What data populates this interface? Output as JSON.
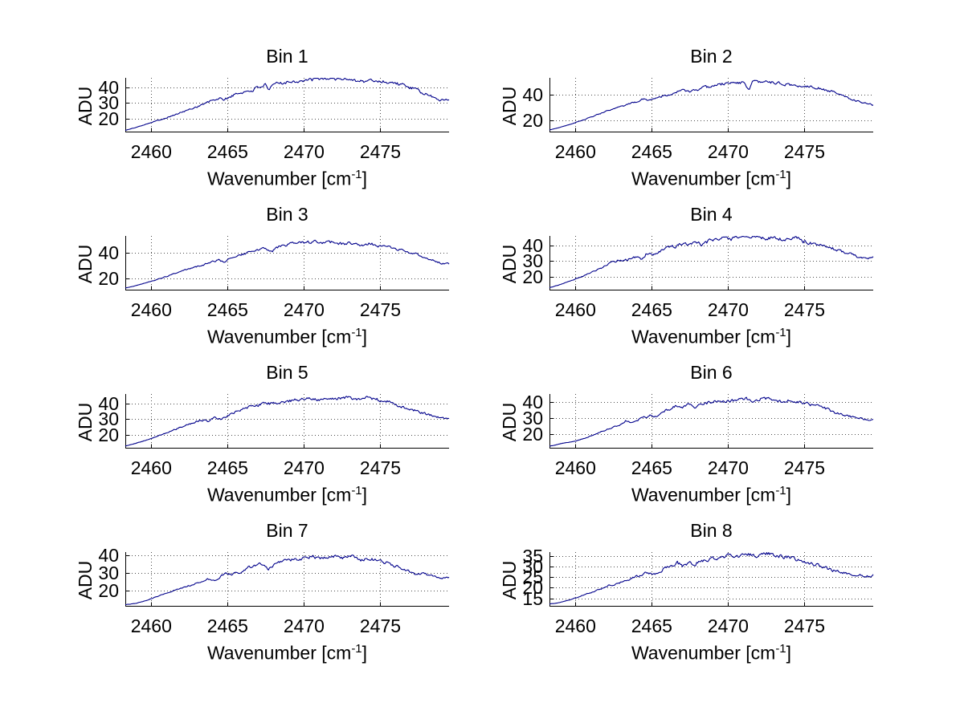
{
  "figure": {
    "background_color": "#ffffff",
    "line_color": "#00008b",
    "grid_color": "#4c4c4c",
    "axis_color": "#000000",
    "text_color": "#000000"
  },
  "shared": {
    "ylabel": "ADU",
    "xlabel_prefix": "Wavenumber [cm",
    "xlabel_sup": "-1",
    "xlabel_suffix": "]",
    "x_ticks": [
      2460,
      2465,
      2470,
      2475
    ],
    "xlim": [
      2458.3,
      2479.5
    ],
    "grid": true,
    "legend": "none"
  },
  "chart_data": [
    {
      "type": "line",
      "title": "Bin 1",
      "ylabel": "ADU",
      "xlabel": "Wavenumber [cm⁻¹]",
      "xlim": [
        2458.3,
        2479.5
      ],
      "ylim": [
        11,
        46
      ],
      "x_ticks": [
        2460,
        2465,
        2470,
        2475
      ],
      "y_ticks": [
        20,
        30,
        40
      ],
      "noise_amplitude": 1.0,
      "seed": 101,
      "anchors_x": [
        2458.3,
        2459.0,
        2459.8,
        2460.6,
        2461.4,
        2462.2,
        2463.0,
        2463.8,
        2464.4,
        2464.8,
        2465.4,
        2466.0,
        2466.6,
        2467.2,
        2467.45,
        2467.7,
        2468.0,
        2468.4,
        2469.0,
        2469.6,
        2470.3,
        2470.9,
        2471.5,
        2472.1,
        2472.7,
        2473.3,
        2473.9,
        2474.5,
        2474.9,
        2475.5,
        2476.1,
        2476.7,
        2477.3,
        2477.9,
        2478.5,
        2479.0,
        2479.5
      ],
      "anchors_y": [
        12.3,
        14.2,
        16.8,
        19.2,
        21.8,
        24.6,
        27.6,
        30.6,
        32.8,
        32.0,
        35.0,
        36.8,
        38.0,
        40.8,
        41.5,
        37.2,
        41.8,
        42.8,
        43.6,
        44.0,
        44.4,
        45.2,
        45.8,
        45.3,
        45.6,
        44.8,
        43.6,
        44.4,
        43.8,
        43.4,
        42.4,
        40.6,
        38.4,
        35.8,
        33.4,
        31.6,
        32.4
      ]
    },
    {
      "type": "line",
      "title": "Bin 2",
      "ylabel": "ADU",
      "xlabel": "Wavenumber [cm⁻¹]",
      "xlim": [
        2458.3,
        2479.5
      ],
      "ylim": [
        10.6,
        53
      ],
      "x_ticks": [
        2460,
        2465,
        2470,
        2475
      ],
      "y_ticks": [
        20,
        40
      ],
      "noise_amplitude": 1.0,
      "seed": 202,
      "anchors_x": [
        2458.3,
        2459.0,
        2459.8,
        2460.6,
        2461.4,
        2462.2,
        2463.0,
        2463.8,
        2464.5,
        2464.9,
        2465.3,
        2466.0,
        2466.6,
        2467.1,
        2467.6,
        2468.1,
        2468.7,
        2469.3,
        2469.9,
        2470.5,
        2471.1,
        2471.35,
        2471.6,
        2472.1,
        2472.6,
        2473.1,
        2473.7,
        2474.3,
        2474.9,
        2475.4,
        2476.0,
        2476.6,
        2477.2,
        2477.8,
        2478.4,
        2478.9,
        2479.3,
        2479.5
      ],
      "anchors_y": [
        12.5,
        14.6,
        17.4,
        20.6,
        24.2,
        27.6,
        30.6,
        33.6,
        36.8,
        35.8,
        37.6,
        39.8,
        41.8,
        43.4,
        42.2,
        44.2,
        46.0,
        47.6,
        48.6,
        49.6,
        48.8,
        43.5,
        49.8,
        49.2,
        50.2,
        48.8,
        48.2,
        47.0,
        46.2,
        46.8,
        44.8,
        43.0,
        40.6,
        37.8,
        35.2,
        33.6,
        33.2,
        31.8
      ]
    },
    {
      "type": "line",
      "title": "Bin 3",
      "ylabel": "ADU",
      "xlabel": "Wavenumber [cm⁻¹]",
      "xlim": [
        2458.3,
        2479.5
      ],
      "ylim": [
        11,
        53
      ],
      "x_ticks": [
        2460,
        2465,
        2470,
        2475
      ],
      "y_ticks": [
        20,
        40
      ],
      "noise_amplitude": 1.0,
      "seed": 303,
      "anchors_x": [
        2458.3,
        2459.0,
        2459.8,
        2460.6,
        2461.4,
        2462.2,
        2463.0,
        2463.8,
        2464.4,
        2464.8,
        2465.2,
        2465.8,
        2466.4,
        2467.0,
        2467.5,
        2467.9,
        2468.3,
        2468.9,
        2469.5,
        2470.1,
        2470.7,
        2471.3,
        2471.9,
        2472.5,
        2473.1,
        2473.7,
        2474.3,
        2474.9,
        2475.5,
        2476.1,
        2476.7,
        2477.3,
        2477.9,
        2478.5,
        2479.0,
        2479.5
      ],
      "anchors_y": [
        12.8,
        14.8,
        17.4,
        20.2,
        23.4,
        26.6,
        29.4,
        32.2,
        34.4,
        33.2,
        36.2,
        38.2,
        40.2,
        42.2,
        43.8,
        40.8,
        44.6,
        46.2,
        47.2,
        47.6,
        48.6,
        47.4,
        48.4,
        46.8,
        47.6,
        46.2,
        47.0,
        45.6,
        44.4,
        42.8,
        41.2,
        39.2,
        36.6,
        34.0,
        32.0,
        31.4
      ]
    },
    {
      "type": "line",
      "title": "Bin 4",
      "ylabel": "ADU",
      "xlabel": "Wavenumber [cm⁻¹]",
      "xlim": [
        2458.3,
        2479.5
      ],
      "ylim": [
        11,
        46
      ],
      "x_ticks": [
        2460,
        2465,
        2470,
        2475
      ],
      "y_ticks": [
        20,
        30,
        40
      ],
      "noise_amplitude": 1.0,
      "seed": 404,
      "anchors_x": [
        2458.3,
        2459.0,
        2459.8,
        2460.6,
        2461.4,
        2462.0,
        2462.5,
        2462.9,
        2463.4,
        2463.9,
        2464.3,
        2464.7,
        2465.1,
        2465.7,
        2466.3,
        2466.9,
        2467.5,
        2468.0,
        2468.3,
        2468.8,
        2469.4,
        2470.0,
        2470.6,
        2471.2,
        2471.8,
        2472.4,
        2473.0,
        2473.6,
        2474.1,
        2474.45,
        2474.8,
        2475.4,
        2476.0,
        2476.4,
        2477.0,
        2477.6,
        2478.2,
        2478.8,
        2479.2,
        2479.5
      ],
      "anchors_y": [
        12.8,
        14.8,
        17.6,
        20.6,
        24.0,
        27.0,
        29.6,
        30.4,
        30.8,
        32.4,
        31.2,
        35.2,
        34.4,
        36.8,
        39.0,
        40.4,
        41.2,
        41.6,
        39.8,
        43.2,
        44.4,
        43.8,
        44.6,
        45.4,
        45.0,
        44.4,
        44.8,
        43.6,
        44.2,
        45.2,
        42.6,
        41.4,
        40.2,
        39.6,
        37.6,
        35.6,
        33.6,
        31.6,
        31.2,
        32.6
      ]
    },
    {
      "type": "line",
      "title": "Bin 5",
      "ylabel": "ADU",
      "xlabel": "Wavenumber [cm⁻¹]",
      "xlim": [
        2458.3,
        2479.5
      ],
      "ylim": [
        11,
        46
      ],
      "x_ticks": [
        2460,
        2465,
        2470,
        2475
      ],
      "y_ticks": [
        20,
        30,
        40
      ],
      "noise_amplitude": 0.9,
      "seed": 505,
      "anchors_x": [
        2458.3,
        2459.0,
        2459.8,
        2460.6,
        2461.4,
        2462.2,
        2462.8,
        2463.3,
        2463.7,
        2464.2,
        2464.6,
        2465.1,
        2465.7,
        2466.3,
        2466.9,
        2467.5,
        2468.1,
        2468.7,
        2469.3,
        2469.9,
        2470.5,
        2471.1,
        2471.7,
        2472.3,
        2472.9,
        2473.5,
        2474.1,
        2474.7,
        2475.2,
        2475.7,
        2476.1,
        2476.6,
        2477.2,
        2477.8,
        2478.4,
        2478.9,
        2479.3,
        2479.5
      ],
      "anchors_y": [
        12.6,
        14.4,
        16.8,
        19.6,
        22.6,
        25.6,
        27.8,
        29.4,
        28.4,
        30.8,
        29.8,
        32.6,
        35.0,
        37.2,
        38.8,
        40.0,
        39.6,
        40.8,
        42.0,
        42.8,
        43.2,
        42.6,
        43.8,
        43.2,
        43.6,
        42.8,
        43.4,
        42.6,
        41.2,
        40.8,
        38.6,
        37.4,
        35.6,
        33.8,
        32.0,
        30.8,
        30.2,
        30.8
      ]
    },
    {
      "type": "line",
      "title": "Bin 6",
      "ylabel": "ADU",
      "xlabel": "Wavenumber [cm⁻¹]",
      "xlim": [
        2458.3,
        2479.5
      ],
      "ylim": [
        11,
        45
      ],
      "x_ticks": [
        2460,
        2465,
        2470,
        2475
      ],
      "y_ticks": [
        20,
        30,
        40
      ],
      "noise_amplitude": 0.9,
      "seed": 606,
      "anchors_x": [
        2458.3,
        2459.2,
        2459.9,
        2460.5,
        2461.2,
        2462.0,
        2462.8,
        2463.3,
        2463.7,
        2464.3,
        2464.9,
        2465.3,
        2465.8,
        2466.3,
        2466.65,
        2466.95,
        2467.4,
        2467.8,
        2468.1,
        2468.6,
        2469.2,
        2469.9,
        2470.6,
        2471.2,
        2471.7,
        2472.3,
        2472.9,
        2473.5,
        2474.1,
        2474.7,
        2475.2,
        2475.8,
        2476.4,
        2477.0,
        2477.6,
        2478.2,
        2478.8,
        2479.2,
        2479.5
      ],
      "anchors_y": [
        12.4,
        14.4,
        15.4,
        17.0,
        19.6,
        22.6,
        25.4,
        28.4,
        27.0,
        29.8,
        31.6,
        30.8,
        33.8,
        36.4,
        38.0,
        35.8,
        38.2,
        36.6,
        38.6,
        39.4,
        40.2,
        40.8,
        41.2,
        41.8,
        40.4,
        42.4,
        41.4,
        40.6,
        41.2,
        39.8,
        38.8,
        37.6,
        35.8,
        33.4,
        31.8,
        30.6,
        29.6,
        29.2,
        29.6
      ]
    },
    {
      "type": "line",
      "title": "Bin 7",
      "ylabel": "ADU",
      "xlabel": "Wavenumber [cm⁻¹]",
      "xlim": [
        2458.3,
        2479.5
      ],
      "ylim": [
        10.7,
        42
      ],
      "x_ticks": [
        2460,
        2465,
        2470,
        2475
      ],
      "y_ticks": [
        20,
        30,
        40
      ],
      "noise_amplitude": 0.85,
      "seed": 707,
      "anchors_x": [
        2458.3,
        2459.0,
        2459.6,
        2460.3,
        2461.0,
        2461.8,
        2462.5,
        2463.2,
        2463.65,
        2464.0,
        2464.6,
        2465.0,
        2465.3,
        2465.9,
        2466.4,
        2467.0,
        2467.35,
        2467.65,
        2468.1,
        2468.7,
        2469.4,
        2470.0,
        2470.6,
        2471.2,
        2471.8,
        2472.3,
        2472.7,
        2473.2,
        2473.7,
        2474.2,
        2474.7,
        2475.1,
        2475.6,
        2476.1,
        2476.6,
        2477.0,
        2477.35,
        2477.8,
        2478.3,
        2478.9,
        2479.5
      ],
      "anchors_y": [
        11.8,
        12.6,
        14.0,
        16.2,
        18.4,
        20.8,
        22.8,
        24.8,
        26.4,
        25.2,
        28.2,
        30.2,
        29.0,
        31.0,
        33.2,
        35.6,
        34.2,
        31.8,
        35.8,
        36.8,
        37.8,
        38.6,
        39.4,
        38.8,
        40.2,
        39.2,
        38.6,
        39.6,
        37.4,
        38.6,
        37.2,
        36.6,
        35.2,
        33.6,
        31.8,
        30.2,
        29.4,
        30.0,
        28.4,
        27.4,
        27.2
      ]
    },
    {
      "type": "line",
      "title": "Bin 8",
      "ylabel": "ADU",
      "xlabel": "Wavenumber [cm⁻¹]",
      "xlim": [
        2458.3,
        2479.5
      ],
      "ylim": [
        11,
        37
      ],
      "x_ticks": [
        2460,
        2465,
        2470,
        2475
      ],
      "y_ticks": [
        15,
        20,
        25,
        30,
        35
      ],
      "noise_amplitude": 0.8,
      "seed": 808,
      "anchors_x": [
        2458.3,
        2459.0,
        2459.7,
        2460.4,
        2461.1,
        2461.8,
        2462.2,
        2462.7,
        2463.4,
        2464.1,
        2464.7,
        2465.2,
        2465.8,
        2466.3,
        2466.65,
        2467.0,
        2467.4,
        2467.8,
        2468.3,
        2468.9,
        2469.5,
        2470.1,
        2470.7,
        2471.3,
        2471.9,
        2472.5,
        2473.1,
        2473.7,
        2474.3,
        2474.9,
        2475.5,
        2476.1,
        2476.7,
        2477.3,
        2477.9,
        2478.4,
        2478.9,
        2479.3,
        2479.5
      ],
      "anchors_y": [
        12.2,
        13.0,
        14.4,
        16.2,
        18.0,
        19.8,
        21.2,
        21.8,
        23.6,
        25.6,
        27.2,
        26.6,
        29.0,
        31.2,
        32.0,
        30.4,
        32.2,
        31.4,
        33.0,
        34.0,
        34.8,
        35.4,
        35.0,
        35.8,
        35.2,
        36.4,
        35.6,
        34.8,
        33.8,
        32.8,
        31.4,
        30.2,
        28.6,
        27.6,
        26.8,
        26.2,
        25.8,
        25.6,
        26.2
      ]
    }
  ]
}
